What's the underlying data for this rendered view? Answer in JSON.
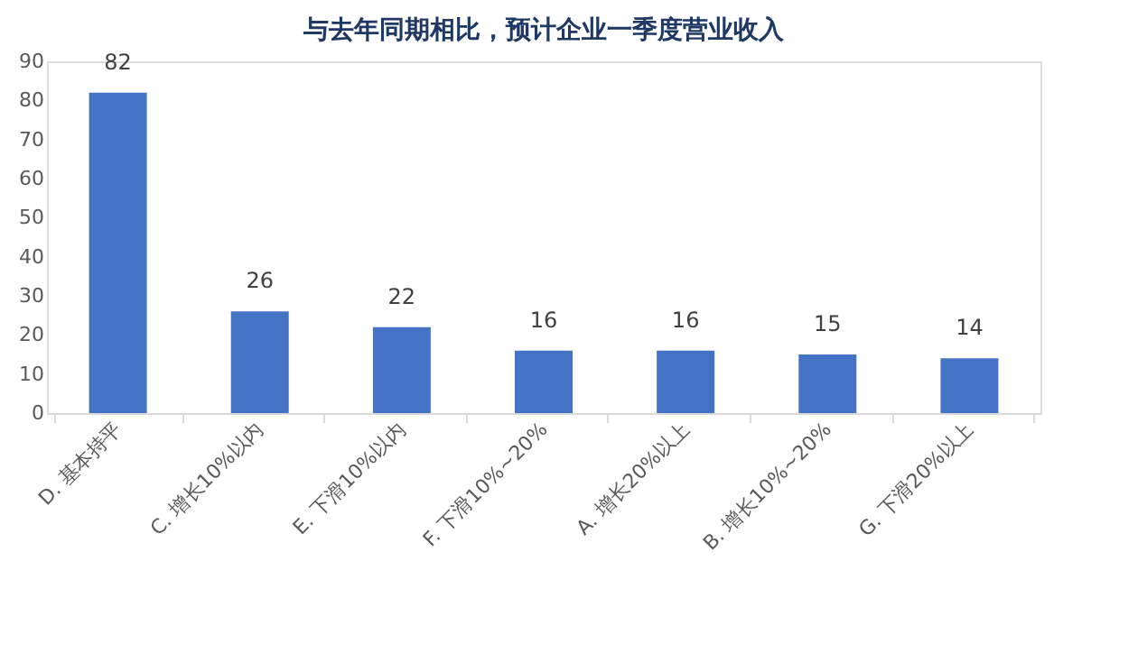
{
  "chart_data": {
    "type": "bar",
    "title": "与去年同期相比，预计企业一季度营业收入",
    "categories": [
      "D. 基本持平",
      "C. 增长10%以内",
      "E. 下滑10%以内",
      "F. 下滑10%~20%",
      "A. 增长20%以上",
      "B. 增长10%~20%",
      "G. 下滑20%以上"
    ],
    "values": [
      82,
      26,
      22,
      16,
      16,
      15,
      14
    ],
    "color": "#4472c4",
    "ylim": [
      0,
      90
    ],
    "yticks": [
      0,
      10,
      20,
      30,
      40,
      50,
      60,
      70,
      80,
      90
    ],
    "data_labels": true,
    "grid": false
  }
}
